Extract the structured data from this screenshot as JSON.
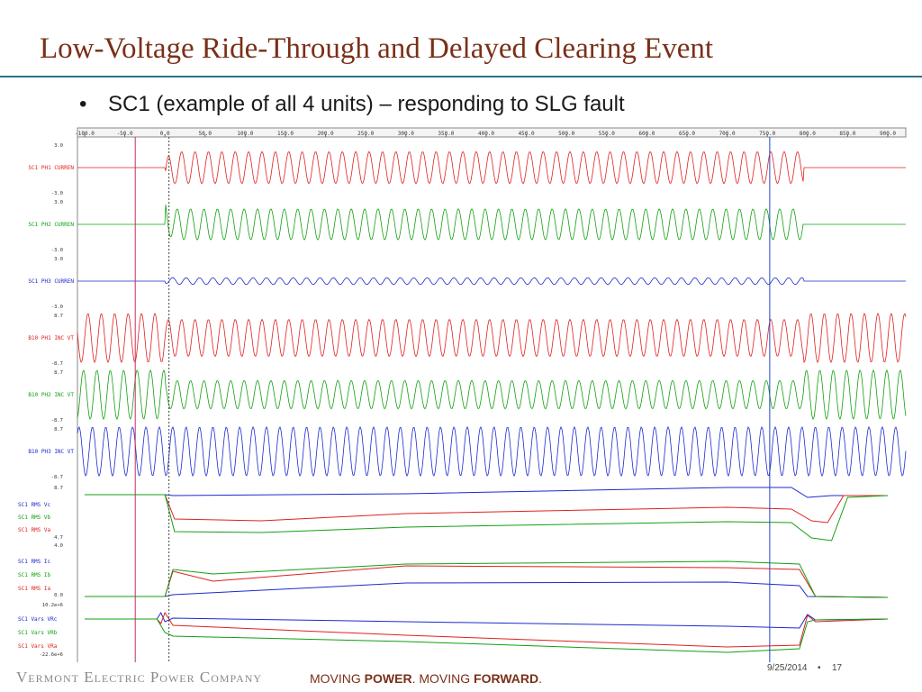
{
  "slide": {
    "title": "Low-Voltage Ride-Through and Delayed Clearing Event",
    "bullet_marker": "•",
    "bullet_text": "SC1 (example of all 4 units) – responding to SLG fault"
  },
  "footer": {
    "company": "Vermont Electric Power Company",
    "tagline_1": "MOVING ",
    "tagline_2": "POWER",
    "tagline_3": ". MOVING ",
    "tagline_4": "FORWARD",
    "tagline_5": ".",
    "date": "9/25/2014",
    "separator": "•",
    "page": "17"
  },
  "colors": {
    "red": "#e02020",
    "green": "#10a010",
    "blue": "#1a2ad0",
    "title": "#7a3018",
    "rule": "#2f6e8e"
  },
  "chart_data": {
    "type": "line",
    "x_ticks": [
      "-100.0",
      "-50.0",
      "0.0",
      "50.0",
      "100.0",
      "150.0",
      "200.0",
      "250.0",
      "300.0",
      "350.0",
      "400.0",
      "450.0",
      "500.0",
      "550.0",
      "600.0",
      "650.0",
      "700.0",
      "750.0",
      "800.0",
      "850.0",
      "900.0"
    ],
    "xlim": [
      -100,
      900
    ],
    "cursors": [
      {
        "x": -37,
        "color": "#c03060"
      },
      {
        "x": 5,
        "color": "#444444"
      },
      {
        "x": 753,
        "color": "#2040c0"
      }
    ],
    "channels": [
      {
        "kind": "sine",
        "name": "SC1 PH1 CURREN",
        "color": "#e02020",
        "ymax": "3.0",
        "ymin": "-3.0",
        "fault_start": 0,
        "fault_end": 795,
        "pre_amp": 0,
        "amp": 0.62,
        "post_amp": 0,
        "phase": 0,
        "transient": -0.4
      },
      {
        "kind": "sine",
        "name": "SC1 PH2 CURREN",
        "color": "#10a010",
        "ymax": "3.0",
        "ymin": "-3.0",
        "fault_start": 0,
        "fault_end": 795,
        "pre_amp": 0,
        "amp": 0.6,
        "post_amp": 0,
        "phase": 2.1,
        "transient": 0.45
      },
      {
        "kind": "sine",
        "name": "SC1 PH3 CURREN",
        "color": "#1a2ad0",
        "ymax": "3.0",
        "ymin": "-3.0",
        "fault_start": 0,
        "fault_end": 795,
        "pre_amp": 0,
        "amp": 0.13,
        "post_amp": 0,
        "phase": 4.2,
        "transient": 0.05
      },
      {
        "kind": "sine",
        "name": "B10 PH1 INC VT",
        "color": "#e02020",
        "ymax": "8.7",
        "ymin": "-8.7",
        "fault_start": 0,
        "fault_end": 795,
        "pre_amp": 0.95,
        "amp": 0.72,
        "post_amp": 0.95,
        "phase": 0,
        "transient": 0
      },
      {
        "kind": "sine",
        "name": "B10 PH2 INC VT",
        "color": "#10a010",
        "ymax": "8.7",
        "ymin": "-8.7",
        "fault_start": 0,
        "fault_end": 795,
        "pre_amp": 0.95,
        "amp": 0.55,
        "post_amp": 0.95,
        "phase": 2.1,
        "transient": 0
      },
      {
        "kind": "sine",
        "name": "B10 PH3 INC VT",
        "color": "#1a2ad0",
        "ymax": "8.7",
        "ymin": "-8.7",
        "fault_start": 0,
        "fault_end": 795,
        "pre_amp": 0.95,
        "amp": 0.95,
        "post_amp": 0.95,
        "phase": 4.2,
        "transient": 0
      }
    ],
    "rms_voltage": {
      "ymax": "8.7",
      "ymin": "4.7",
      "labels": [
        {
          "text": "SC1 RMS Vc",
          "color": "#1a2ad0"
        },
        {
          "text": "SC1 RMS Vb",
          "color": "#10a010"
        },
        {
          "text": "SC1 RMS Va",
          "color": "#e02020"
        }
      ]
    },
    "rms_current": {
      "ymax": "4.0",
      "ymin": "0.0",
      "labels": [
        {
          "text": "SC1 RMS Ic",
          "color": "#1a2ad0"
        },
        {
          "text": "SC1 RMS Ib",
          "color": "#10a010"
        },
        {
          "text": "SC1 RMS Ia",
          "color": "#e02020"
        }
      ]
    },
    "vars": {
      "ymax": "10.2e+6",
      "ymin": "-22.6e+6",
      "labels": [
        {
          "text": "SC1 Vars VRc",
          "color": "#1a2ad0"
        },
        {
          "text": "SC1 Vars VRb",
          "color": "#10a010"
        },
        {
          "text": "SC1 Vars VRa",
          "color": "#e02020"
        }
      ]
    }
  }
}
